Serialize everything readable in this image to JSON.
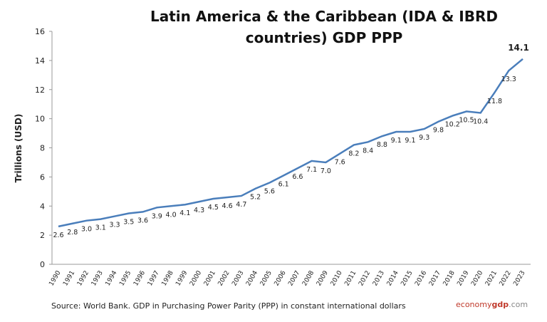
{
  "chart_data": {
    "type": "line",
    "title": "Latin America & the Caribbean (IDA & IBRD countries) GDP PPP",
    "y_label": "Trillions (USD)",
    "source": "Source: World Bank.  GDP in  Purchasing Power Parity (PPP)  in constant international dollars",
    "watermark": [
      "economy",
      "gdp",
      ".com"
    ],
    "categories": [
      "1990",
      "1991",
      "1992",
      "1993",
      "1994",
      "1995",
      "1996",
      "1997",
      "1998",
      "1999",
      "2000",
      "2001",
      "2002",
      "2003",
      "2004",
      "2005",
      "2006",
      "2007",
      "2008",
      "2009",
      "2010",
      "2011",
      "2012",
      "2013",
      "2014",
      "2015",
      "2016",
      "2017",
      "2018",
      "2019",
      "2020",
      "2021",
      "2022",
      "2023"
    ],
    "series": [
      {
        "name": "GDP PPP",
        "color": "#4a7ebb",
        "values": [
          2.6,
          2.8,
          3.0,
          3.1,
          3.3,
          3.5,
          3.6,
          3.9,
          4.0,
          4.1,
          4.3,
          4.5,
          4.6,
          4.7,
          5.2,
          5.6,
          6.1,
          6.6,
          7.1,
          7.0,
          7.6,
          8.2,
          8.4,
          8.8,
          9.1,
          9.1,
          9.3,
          9.8,
          10.2,
          10.5,
          10.4,
          11.8,
          13.3,
          14.1
        ],
        "value_labels": [
          "2.6",
          "2.8",
          "3.0",
          "3.1",
          "3.3",
          "3.5",
          "3.6",
          "3.9",
          "4.0",
          "4.1",
          "4.3",
          "4.5",
          "4.6",
          "4.7",
          "5.2",
          "5.6",
          "6.1",
          "6.6",
          "7.1",
          "7.0",
          "7.6",
          "8.2",
          "8.4",
          "8.8",
          "9.1",
          "9.1",
          "9.3",
          "9.8",
          "10.2",
          "10.5",
          "10.4",
          "11.8",
          "13.3",
          "14.1"
        ]
      }
    ],
    "ylim": [
      0,
      16
    ],
    "yticks": [
      0,
      2,
      4,
      6,
      8,
      10,
      12,
      14,
      16
    ],
    "grid": false
  }
}
